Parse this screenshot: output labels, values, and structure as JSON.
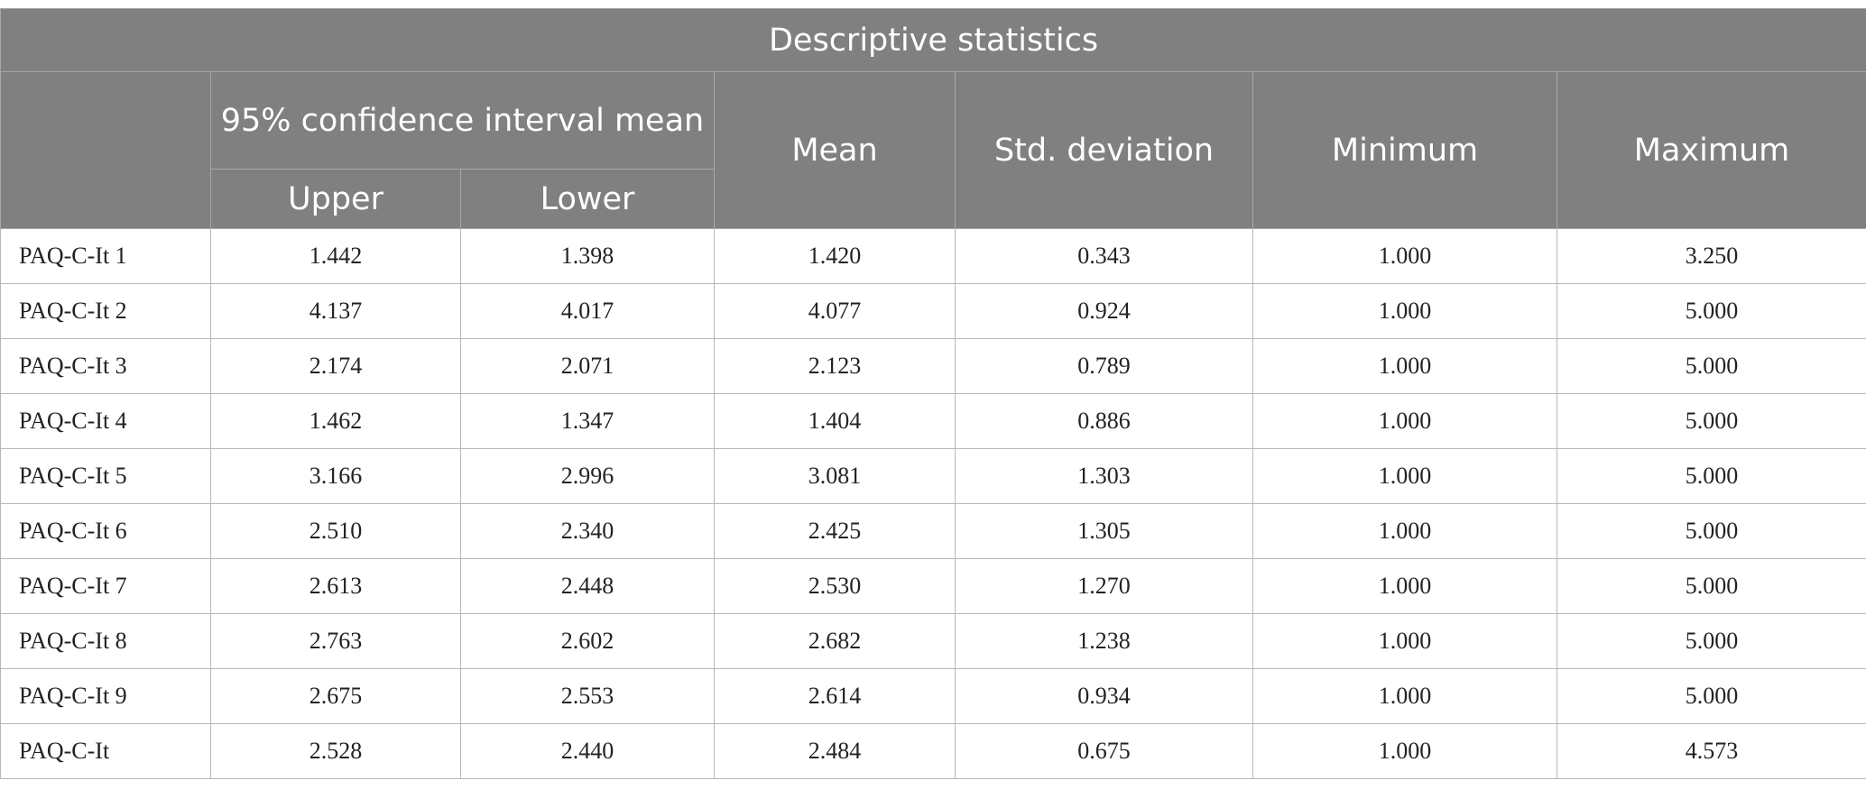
{
  "table": {
    "title": "Descriptive statistics",
    "group_header": "95% confidence interval mean",
    "columns": [
      "Upper",
      "Lower",
      "Mean",
      "Std. deviation",
      "Minimum",
      "Maximum"
    ],
    "rows": [
      [
        "PAQ-C-It 1",
        "1.442",
        "1.398",
        "1.420",
        "0.343",
        "1.000",
        "3.250"
      ],
      [
        "PAQ-C-It 2",
        "4.137",
        "4.017",
        "4.077",
        "0.924",
        "1.000",
        "5.000"
      ],
      [
        "PAQ-C-It 3",
        "2.174",
        "2.071",
        "2.123",
        "0.789",
        "1.000",
        "5.000"
      ],
      [
        "PAQ-C-It 4",
        "1.462",
        "1.347",
        "1.404",
        "0.886",
        "1.000",
        "5.000"
      ],
      [
        "PAQ-C-It 5",
        "3.166",
        "2.996",
        "3.081",
        "1.303",
        "1.000",
        "5.000"
      ],
      [
        "PAQ-C-It 6",
        "2.510",
        "2.340",
        "2.425",
        "1.305",
        "1.000",
        "5.000"
      ],
      [
        "PAQ-C-It 7",
        "2.613",
        "2.448",
        "2.530",
        "1.270",
        "1.000",
        "5.000"
      ],
      [
        "PAQ-C-It 8",
        "2.763",
        "2.602",
        "2.682",
        "1.238",
        "1.000",
        "5.000"
      ],
      [
        "PAQ-C-It 9",
        "2.675",
        "2.553",
        "2.614",
        "0.934",
        "1.000",
        "5.000"
      ],
      [
        "PAQ-C-It",
        "2.528",
        "2.440",
        "2.484",
        "0.675",
        "1.000",
        "4.573"
      ]
    ]
  }
}
